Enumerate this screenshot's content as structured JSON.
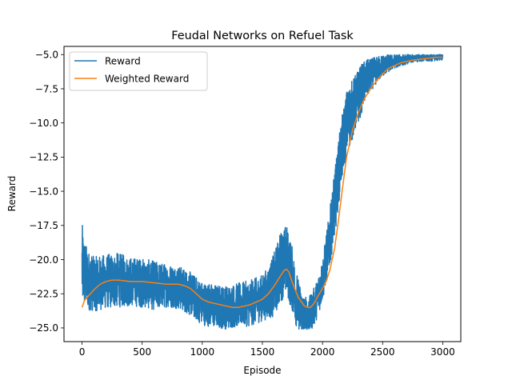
{
  "chart_data": {
    "type": "line",
    "title": "Feudal Networks on Refuel Task",
    "xlabel": "Episode",
    "ylabel": "Reward",
    "xlim": [
      -150,
      3150
    ],
    "ylim": [
      -26.0,
      -4.4
    ],
    "x_ticks": [
      0,
      500,
      1000,
      1500,
      2000,
      2500,
      3000
    ],
    "x_tick_labels": [
      "0",
      "500",
      "1000",
      "1500",
      "2000",
      "2500",
      "3000"
    ],
    "y_ticks": [
      -25.0,
      -22.5,
      -20.0,
      -17.5,
      -15.0,
      -12.5,
      -10.0,
      -7.5,
      -5.0
    ],
    "y_tick_labels": [
      "−25.0",
      "−22.5",
      "−20.0",
      "−17.5",
      "−15.0",
      "−12.5",
      "−10.0",
      "−7.5",
      "−5.0"
    ],
    "grid": false,
    "legend_position": "top-left",
    "series": [
      {
        "name": "Reward",
        "color": "#1f77b4",
        "style": "noisy",
        "x": [
          0,
          20,
          50,
          100,
          200,
          300,
          400,
          500,
          600,
          700,
          800,
          900,
          1000,
          1100,
          1200,
          1300,
          1400,
          1500,
          1560,
          1600,
          1650,
          1700,
          1750,
          1800,
          1850,
          1900,
          1950,
          2000,
          2050,
          2100,
          2150,
          2200,
          2250,
          2300,
          2350,
          2400,
          2500,
          2600,
          2700,
          2800,
          2900,
          3000
        ],
        "y": [
          -20.5,
          -21.0,
          -21.5,
          -21.8,
          -21.6,
          -21.5,
          -21.6,
          -21.7,
          -21.9,
          -21.9,
          -22.0,
          -22.5,
          -23.2,
          -23.4,
          -23.5,
          -23.3,
          -23.2,
          -22.8,
          -22.3,
          -21.8,
          -20.5,
          -20.0,
          -21.5,
          -23.5,
          -24.3,
          -24.0,
          -23.0,
          -21.5,
          -19.0,
          -16.0,
          -12.5,
          -10.0,
          -9.0,
          -8.0,
          -7.0,
          -6.5,
          -5.8,
          -5.5,
          -5.3,
          -5.2,
          -5.2,
          -5.1
        ],
        "noise_amplitude": [
          3.2,
          2.5,
          2.2,
          2.0,
          2.0,
          2.0,
          1.8,
          1.8,
          1.8,
          1.6,
          1.6,
          1.6,
          1.6,
          1.6,
          1.6,
          1.6,
          1.7,
          1.7,
          2.0,
          2.4,
          2.6,
          2.6,
          2.4,
          2.0,
          1.6,
          1.4,
          1.4,
          1.6,
          2.0,
          2.4,
          2.4,
          2.4,
          2.2,
          2.0,
          1.6,
          1.2,
          0.8,
          0.5,
          0.4,
          0.3,
          0.3,
          0.3
        ]
      },
      {
        "name": "Weighted Reward",
        "color": "#ff7f0e",
        "style": "smooth",
        "x": [
          0,
          20,
          60,
          100,
          150,
          200,
          250,
          300,
          400,
          500,
          600,
          700,
          800,
          850,
          900,
          950,
          1000,
          1050,
          1100,
          1150,
          1200,
          1250,
          1300,
          1350,
          1400,
          1450,
          1500,
          1550,
          1600,
          1650,
          1680,
          1700,
          1720,
          1750,
          1800,
          1850,
          1880,
          1900,
          1930,
          1960,
          2000,
          2030,
          2060,
          2100,
          2130,
          2160,
          2200,
          2250,
          2300,
          2350,
          2400,
          2450,
          2500,
          2550,
          2600,
          2650,
          2700,
          2750,
          2800,
          2850,
          2900,
          2950,
          3000
        ],
        "y": [
          -23.5,
          -23.0,
          -22.6,
          -22.2,
          -21.8,
          -21.6,
          -21.5,
          -21.5,
          -21.6,
          -21.6,
          -21.7,
          -21.8,
          -21.8,
          -21.9,
          -22.1,
          -22.5,
          -22.9,
          -23.1,
          -23.2,
          -23.3,
          -23.4,
          -23.5,
          -23.5,
          -23.4,
          -23.3,
          -23.1,
          -22.9,
          -22.5,
          -21.9,
          -21.2,
          -20.8,
          -20.7,
          -20.9,
          -21.7,
          -22.8,
          -23.4,
          -23.5,
          -23.5,
          -23.2,
          -22.7,
          -22.1,
          -21.6,
          -20.8,
          -19.2,
          -17.3,
          -15.2,
          -12.5,
          -10.5,
          -9.2,
          -8.2,
          -7.5,
          -6.9,
          -6.4,
          -6.0,
          -5.8,
          -5.6,
          -5.5,
          -5.4,
          -5.35,
          -5.3,
          -5.25,
          -5.2,
          -5.2
        ]
      }
    ]
  }
}
